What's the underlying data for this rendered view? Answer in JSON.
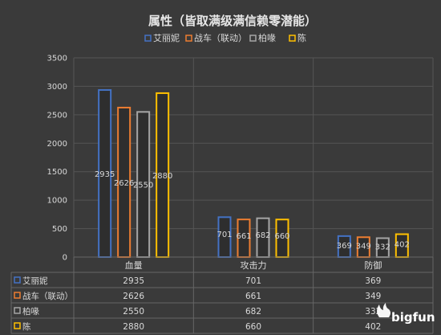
{
  "chart_data": {
    "type": "bar",
    "title": "属性（皆取满级满信赖零潜能）",
    "categories": [
      "血量",
      "攻击力",
      "防御"
    ],
    "series": [
      {
        "name": "艾丽妮",
        "color": "#4472c4",
        "values": [
          2935,
          701,
          369
        ]
      },
      {
        "name": "战车（联动）",
        "color": "#ed7d31",
        "values": [
          2626,
          661,
          349
        ]
      },
      {
        "name": "柏喙",
        "color": "#a5a5a5",
        "values": [
          2550,
          682,
          332
        ]
      },
      {
        "name": "陈",
        "color": "#ffc000",
        "values": [
          2880,
          660,
          402
        ]
      }
    ],
    "ylim": [
      0,
      3500
    ],
    "yticks": [
      0,
      500,
      1000,
      1500,
      2000,
      2500,
      3000,
      3500
    ],
    "grid": true,
    "legend_position": "top",
    "data_table": true
  },
  "watermark": {
    "text": "bigfun"
  }
}
